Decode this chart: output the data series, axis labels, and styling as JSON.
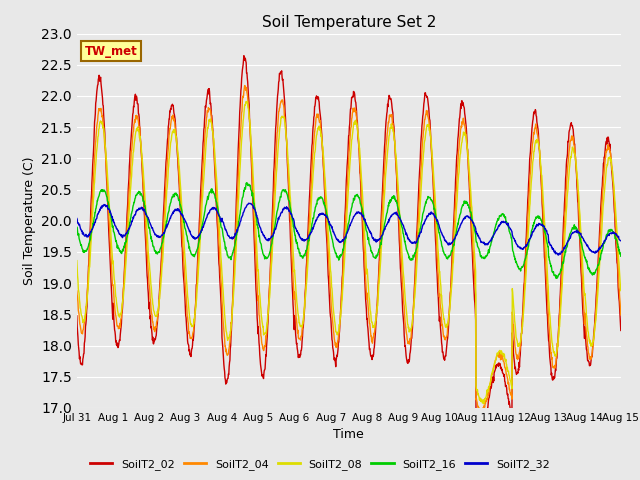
{
  "title": "Soil Temperature Set 2",
  "xlabel": "Time",
  "ylabel": "Soil Temperature (C)",
  "ylim": [
    17.0,
    23.0
  ],
  "yticks": [
    17.0,
    17.5,
    18.0,
    18.5,
    19.0,
    19.5,
    20.0,
    20.5,
    21.0,
    21.5,
    22.0,
    22.5,
    23.0
  ],
  "x_labels": [
    "Jul 31",
    "Aug 1",
    "Aug 2",
    "Aug 3",
    "Aug 4",
    "Aug 5",
    "Aug 6",
    "Aug 7",
    "Aug 8",
    "Aug 9",
    "Aug 10",
    "Aug 11",
    "Aug 12",
    "Aug 13",
    "Aug 14",
    "Aug 15"
  ],
  "series_colors": [
    "#cc0000",
    "#ff8800",
    "#dddd00",
    "#00cc00",
    "#0000cc"
  ],
  "series_labels": [
    "SoilT2_02",
    "SoilT2_04",
    "SoilT2_08",
    "SoilT2_16",
    "SoilT2_32"
  ],
  "annotation_text": "TW_met",
  "annotation_color": "#cc0000",
  "annotation_bg": "#ffff99",
  "annotation_border": "#996600",
  "plot_bg": "#e8e8e8",
  "linewidth": 1.0,
  "days": 15,
  "points_per_day": 96,
  "base_temp": 20.0,
  "amp_02": [
    2.3,
    2.0,
    1.9,
    2.1,
    2.6,
    2.45,
    2.1,
    2.15,
    2.1,
    2.15,
    2.05,
    0.5,
    2.1,
    2.05,
    1.8
  ],
  "amp_04": [
    1.8,
    1.7,
    1.7,
    1.85,
    2.15,
    2.0,
    1.8,
    1.9,
    1.8,
    1.85,
    1.75,
    0.45,
    1.85,
    1.85,
    1.7
  ],
  "amp_08": [
    1.6,
    1.5,
    1.5,
    1.65,
    1.9,
    1.75,
    1.6,
    1.7,
    1.6,
    1.65,
    1.55,
    0.4,
    1.65,
    1.65,
    1.5
  ],
  "amp_16": [
    0.5,
    0.48,
    0.48,
    0.52,
    0.6,
    0.55,
    0.48,
    0.5,
    0.48,
    0.5,
    0.45,
    0.35,
    0.42,
    0.4,
    0.35
  ],
  "amp_32": [
    0.25,
    0.22,
    0.22,
    0.24,
    0.28,
    0.26,
    0.22,
    0.24,
    0.22,
    0.24,
    0.22,
    0.18,
    0.2,
    0.18,
    0.16
  ],
  "trend_02": [
    0.0,
    -0.02,
    -0.04,
    -0.04,
    0.0,
    -0.05,
    -0.1,
    -0.1,
    -0.1,
    -0.12,
    -0.15,
    -2.8,
    -0.35,
    -0.5,
    -0.5
  ],
  "trend_04": [
    0.0,
    -0.02,
    -0.04,
    -0.04,
    0.0,
    -0.05,
    -0.1,
    -0.1,
    -0.1,
    -0.12,
    -0.15,
    -2.6,
    -0.35,
    -0.5,
    -0.5
  ],
  "trend_08": [
    0.0,
    -0.02,
    -0.04,
    -0.04,
    0.0,
    -0.05,
    -0.1,
    -0.1,
    -0.1,
    -0.12,
    -0.15,
    -2.5,
    -0.35,
    -0.5,
    -0.5
  ],
  "trend_16": [
    0.0,
    -0.02,
    -0.04,
    -0.04,
    0.0,
    -0.05,
    -0.1,
    -0.1,
    -0.1,
    -0.12,
    -0.15,
    -0.25,
    -0.35,
    -0.5,
    -0.5
  ],
  "trend_32": [
    0.0,
    -0.02,
    -0.04,
    -0.04,
    0.0,
    -0.05,
    -0.1,
    -0.1,
    -0.1,
    -0.12,
    -0.15,
    -0.2,
    -0.25,
    -0.35,
    -0.35
  ],
  "phase_02": 0.38,
  "phase_04": 0.4,
  "phase_08": 0.43,
  "phase_16": 0.47,
  "phase_32": 0.52
}
